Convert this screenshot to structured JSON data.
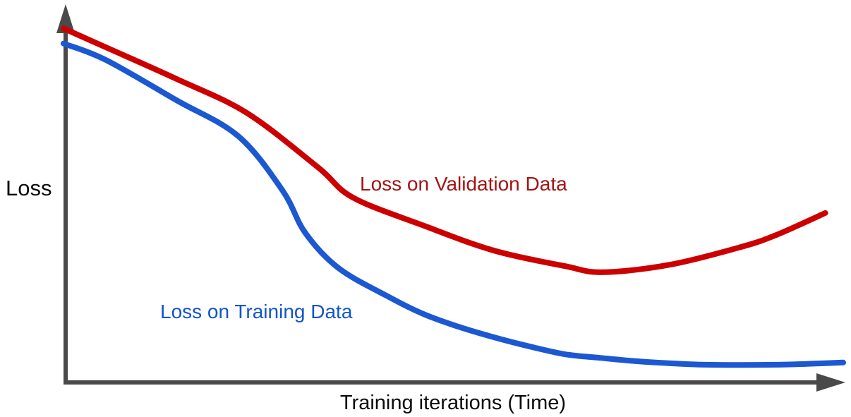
{
  "chart_data": {
    "type": "line",
    "title": "",
    "xlabel": "Training iterations (Time)",
    "ylabel": "Loss",
    "xlim": [
      0,
      1
    ],
    "ylim": [
      0,
      1
    ],
    "grid": false,
    "tick_labels": false,
    "legend_position": "inline-annotations",
    "axes": {
      "color": "#4a4a4a",
      "arrows": true
    },
    "series": [
      {
        "name": "Loss on Validation Data",
        "color": "#cc0000",
        "label_color": "#a31414",
        "shape": "decreases then rises after minimum (overfitting)",
        "x": [
          0.0,
          0.054,
          0.145,
          0.235,
          0.326,
          0.371,
          0.462,
          0.552,
          0.643,
          0.692,
          0.778,
          0.869,
          0.914,
          0.977
        ],
        "y": [
          0.98,
          0.928,
          0.84,
          0.746,
          0.596,
          0.512,
          0.434,
          0.365,
          0.322,
          0.305,
          0.326,
          0.375,
          0.408,
          0.469
        ]
      },
      {
        "name": "Loss on Training Data",
        "color": "#1b58d2",
        "label_color": "#1155cc",
        "shape": "monotonically decreasing to a plateau",
        "x": [
          0.0,
          0.054,
          0.145,
          0.224,
          0.281,
          0.31,
          0.353,
          0.416,
          0.462,
          0.507,
          0.552,
          0.597,
          0.643,
          0.688,
          0.733,
          0.778,
          0.824,
          0.914,
          1.0
        ],
        "y": [
          0.938,
          0.893,
          0.781,
          0.682,
          0.531,
          0.414,
          0.316,
          0.238,
          0.189,
          0.154,
          0.125,
          0.1,
          0.078,
          0.068,
          0.059,
          0.053,
          0.049,
          0.049,
          0.055
        ]
      }
    ],
    "annotations": [
      {
        "text": "Loss on Validation Data",
        "color": "#a31414",
        "near": "above validation curve, mid-left"
      },
      {
        "text": "Loss on Training Data",
        "color": "#1155cc",
        "near": "left of training curve knee"
      }
    ]
  }
}
